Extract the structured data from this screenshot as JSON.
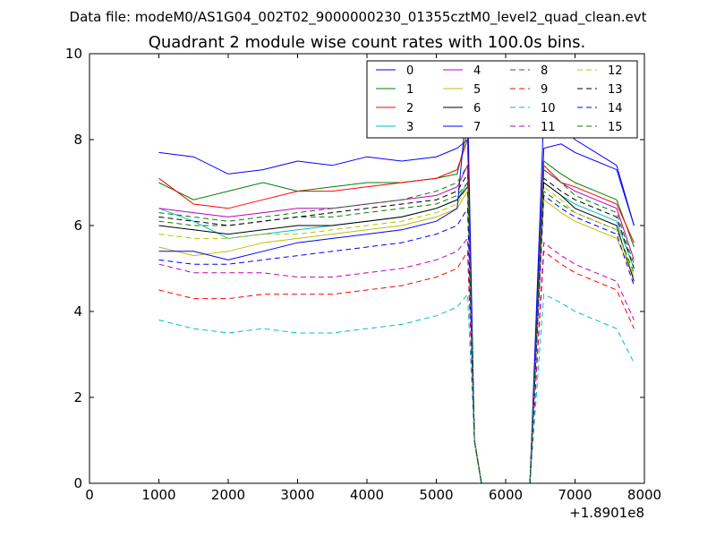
{
  "figure": {
    "suptitle": "Data file: modeM0/AS1G04_002T02_9000000230_01355cztM0_level2_quad_clean.evt",
    "offset_label": "+1.8901e8"
  },
  "chart_data": {
    "type": "line",
    "title": "Quadrant 2 module wise count rates with 100.0s bins.",
    "xlabel": "",
    "ylabel": "",
    "xlim": [
      0,
      8000
    ],
    "ylim": [
      0,
      10
    ],
    "x_offset": 189010000,
    "xticks": [
      0,
      1000,
      2000,
      3000,
      4000,
      5000,
      6000,
      7000,
      8000
    ],
    "yticks": [
      0,
      2,
      4,
      6,
      8,
      10
    ],
    "grid": false,
    "legend": {
      "placement": "top-right",
      "columns": 4
    },
    "x": [
      1000,
      1500,
      2000,
      2500,
      3000,
      3500,
      4000,
      4500,
      5000,
      5300,
      5450,
      5550,
      5650,
      6000,
      6350,
      6550,
      6800,
      7000,
      7300,
      7600,
      7850
    ],
    "series": [
      {
        "name": "0",
        "color": "#0000ff",
        "dash": "solid",
        "values": [
          7.7,
          7.6,
          7.2,
          7.3,
          7.5,
          7.4,
          7.6,
          7.5,
          7.6,
          7.8,
          8.0,
          1.0,
          0,
          0,
          0,
          7.8,
          7.9,
          7.7,
          7.5,
          7.3,
          6.0
        ]
      },
      {
        "name": "1",
        "color": "#008000",
        "dash": "solid",
        "values": [
          7.0,
          6.6,
          6.8,
          7.0,
          6.8,
          6.9,
          7.0,
          7.0,
          7.1,
          7.2,
          8.2,
          1.0,
          0,
          0,
          0,
          7.5,
          7.2,
          7.0,
          6.8,
          6.6,
          5.5
        ]
      },
      {
        "name": "2",
        "color": "#ff0000",
        "dash": "solid",
        "values": [
          7.1,
          6.5,
          6.4,
          6.6,
          6.8,
          6.8,
          6.9,
          7.0,
          7.1,
          7.3,
          8.0,
          1.0,
          0,
          0,
          0,
          7.4,
          7.0,
          6.9,
          6.7,
          6.5,
          5.6
        ]
      },
      {
        "name": "3",
        "color": "#00bfbf",
        "dash": "solid",
        "values": [
          6.4,
          6.1,
          5.7,
          5.8,
          5.9,
          6.0,
          6.1,
          6.2,
          6.4,
          6.6,
          7.0,
          1.0,
          0,
          0,
          0,
          7.0,
          6.7,
          6.5,
          6.3,
          6.1,
          5.0
        ]
      },
      {
        "name": "4",
        "color": "#bf00bf",
        "dash": "solid",
        "values": [
          6.4,
          6.3,
          6.2,
          6.3,
          6.4,
          6.4,
          6.5,
          6.6,
          6.7,
          6.9,
          7.4,
          1.0,
          0,
          0,
          0,
          7.3,
          7.0,
          6.8,
          6.6,
          6.4,
          5.2
        ]
      },
      {
        "name": "5",
        "color": "#bfbf00",
        "dash": "solid",
        "values": [
          5.5,
          5.3,
          5.4,
          5.6,
          5.7,
          5.8,
          5.9,
          6.0,
          6.2,
          6.4,
          6.8,
          1.0,
          0,
          0,
          0,
          6.6,
          6.3,
          6.1,
          5.9,
          5.7,
          4.8
        ]
      },
      {
        "name": "6",
        "color": "#000000",
        "dash": "solid",
        "values": [
          6.0,
          5.9,
          5.8,
          5.9,
          6.0,
          6.0,
          6.1,
          6.2,
          6.4,
          6.6,
          6.9,
          1.0,
          0,
          0,
          0,
          7.0,
          6.7,
          6.4,
          6.2,
          6.0,
          4.7
        ]
      },
      {
        "name": "7",
        "color": "#0000ff",
        "dash": "solid",
        "values": [
          5.4,
          5.4,
          5.2,
          5.4,
          5.6,
          5.7,
          5.8,
          5.9,
          6.1,
          6.4,
          9.0,
          1.0,
          0,
          0,
          0,
          8.6,
          8.3,
          8.0,
          7.7,
          7.4,
          6.0
        ]
      },
      {
        "name": "8",
        "color": "#008000",
        "dash": "dashed",
        "values": [
          6.1,
          6.0,
          6.0,
          6.1,
          6.2,
          6.2,
          6.3,
          6.4,
          6.5,
          6.7,
          7.0,
          1.0,
          0,
          0,
          0,
          6.8,
          6.5,
          6.3,
          6.1,
          5.9,
          4.9
        ]
      },
      {
        "name": "9",
        "color": "#ff0000",
        "dash": "dashed",
        "values": [
          4.5,
          4.3,
          4.3,
          4.4,
          4.4,
          4.4,
          4.5,
          4.6,
          4.8,
          5.0,
          5.4,
          1.0,
          0,
          0,
          0,
          5.4,
          5.1,
          4.9,
          4.7,
          4.5,
          3.6
        ]
      },
      {
        "name": "10",
        "color": "#00bfbf",
        "dash": "dashed",
        "values": [
          3.8,
          3.6,
          3.5,
          3.6,
          3.5,
          3.5,
          3.6,
          3.7,
          3.9,
          4.1,
          4.4,
          1.0,
          0,
          0,
          0,
          4.4,
          4.2,
          4.0,
          3.8,
          3.6,
          2.8
        ]
      },
      {
        "name": "11",
        "color": "#bf00bf",
        "dash": "dashed",
        "values": [
          5.1,
          4.9,
          4.9,
          4.9,
          4.8,
          4.8,
          4.9,
          5.0,
          5.2,
          5.4,
          5.7,
          1.0,
          0,
          0,
          0,
          5.6,
          5.3,
          5.1,
          4.9,
          4.7,
          3.8
        ]
      },
      {
        "name": "12",
        "color": "#bfbf00",
        "dash": "dashed",
        "values": [
          5.8,
          5.7,
          5.7,
          5.8,
          5.8,
          5.9,
          6.0,
          6.1,
          6.3,
          6.5,
          6.9,
          1.0,
          0,
          0,
          0,
          6.9,
          6.6,
          6.3,
          6.1,
          5.9,
          4.8
        ]
      },
      {
        "name": "13",
        "color": "#000000",
        "dash": "dashed",
        "values": [
          6.2,
          6.1,
          6.0,
          6.1,
          6.2,
          6.3,
          6.4,
          6.5,
          6.6,
          6.8,
          7.2,
          1.0,
          0,
          0,
          0,
          7.1,
          6.8,
          6.6,
          6.4,
          6.2,
          5.0
        ]
      },
      {
        "name": "14",
        "color": "#0000ff",
        "dash": "dashed",
        "values": [
          5.2,
          5.1,
          5.1,
          5.2,
          5.3,
          5.4,
          5.5,
          5.6,
          5.8,
          6.0,
          6.4,
          1.0,
          0,
          0,
          0,
          6.7,
          6.4,
          6.2,
          6.0,
          5.8,
          4.6
        ]
      },
      {
        "name": "15",
        "color": "#008000",
        "dash": "dashed",
        "values": [
          6.3,
          6.2,
          6.1,
          6.2,
          6.3,
          6.4,
          6.5,
          6.6,
          6.8,
          7.0,
          7.4,
          1.0,
          0,
          0,
          0,
          7.3,
          7.0,
          6.7,
          6.5,
          6.3,
          5.1
        ]
      }
    ]
  }
}
